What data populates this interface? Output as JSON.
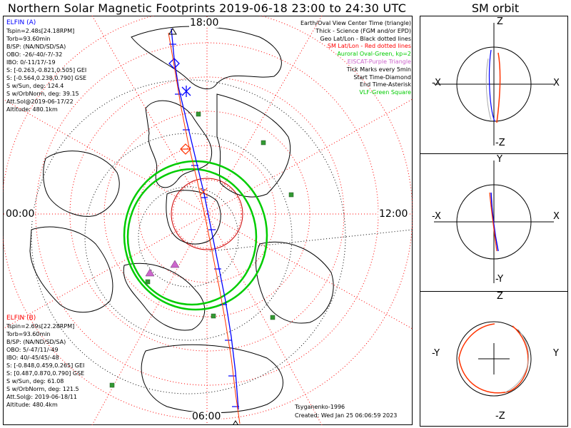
{
  "title": "Northern Solar Magnetic Footprints 2019-06-18 23:00 to 24:30 UTC",
  "sm_orbit_title": "SM orbit",
  "hour_labels": {
    "top": "18:00",
    "left": "00:00",
    "right": "12:00",
    "bottom": "06:00"
  },
  "elfin_a": {
    "name": "ELFIN (A)",
    "lines": [
      "Tspin=2.48s[24.18RPM]",
      "Torb=93.60min",
      "B/SP: (NA/ND/SD/SA)",
      "OBO: -26/-40/-7/-32",
      "IBO: 0/-11/17/-19",
      "S: [-0.263,-0.821,0.505] GEI",
      "S: [-0.564,0.238,0.790] GSE",
      "S w/Sun, deg: 124.4",
      "S w/OrbNorm, deg: 39.15",
      "Att.Sol@2019-06-17/22",
      "Altitude: 480.1km"
    ],
    "color": "#0000ff"
  },
  "elfin_b": {
    "name": "ELFIN (B)",
    "lines": [
      "Tspin=2.69s[22.28RPM]",
      "Torb=93.60min",
      "B/SP: (NA/ND/SD/SA)",
      "OBO: 5/-47/11/-49",
      "IBO: 40/-45/45/-48",
      "S: [-0.848,0.459,0.265] GEI",
      "S: [0.487,0.870,0.790] GSE",
      "S w/Sun, deg: 61.08",
      "S w/OrbNorm, deg: 121.5",
      "Att.Sol@: 2019-06-18/11",
      "Altitude: 480.4km"
    ],
    "color": "#ff0000"
  },
  "legend": [
    {
      "text": "Earth/Oval View Center Time (triangle)",
      "color": "#000000"
    },
    {
      "text": "Thick - Science (FGM and/or EPD)",
      "color": "#000000"
    },
    {
      "text": "Geo Lat/Lon - Black dotted lines",
      "color": "#000000"
    },
    {
      "text": "SM Lat/Lon - Red dotted lines",
      "color": "#ff0000"
    },
    {
      "text": "Auroral Oval-Green, kp=2",
      "color": "#00cc00"
    },
    {
      "text": "EISCAT-Purple Triangle",
      "color": "#cc66cc"
    },
    {
      "text": "Tick Marks every 5min",
      "color": "#000000"
    },
    {
      "text": "Start Time-Diamond",
      "color": "#000000"
    },
    {
      "text": "End Time-Asterisk",
      "color": "#000000"
    },
    {
      "text": "VLF-Green Square",
      "color": "#00cc00"
    }
  ],
  "credits": {
    "model": "Tsyganenko-1996",
    "created": "Created: Wed Jan 25 06:06:59 2023"
  },
  "panels": [
    {
      "top_label": "Z",
      "bottom_label": "-Z",
      "left_label": "-X",
      "right_label": "X"
    },
    {
      "top_label": "Y",
      "bottom_label": "-Y",
      "left_label": "-X",
      "right_label": "X"
    },
    {
      "top_label": "Z",
      "bottom_label": "-Z",
      "left_label": "-Y",
      "right_label": "Y"
    }
  ],
  "colors": {
    "sm_grid": "#ff0000",
    "geo_grid": "#000000",
    "oval": "#00cc00",
    "track_a": "#0000ff",
    "track_b": "#ff3300",
    "eiscat": "#cc66cc",
    "vlf": "#339933"
  }
}
